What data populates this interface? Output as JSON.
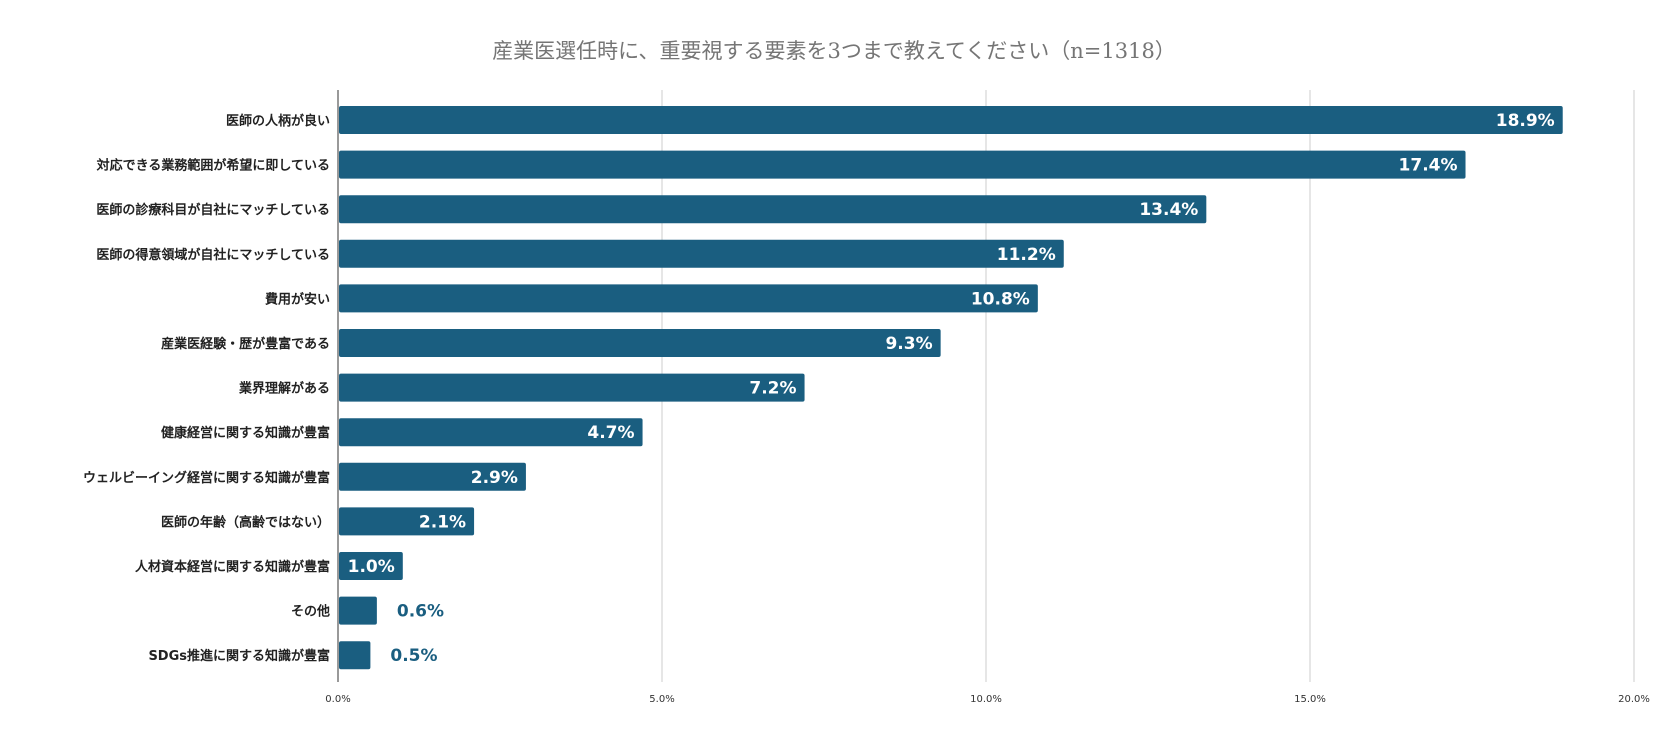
{
  "chart_data": {
    "type": "bar",
    "orientation": "horizontal",
    "title": "産業医選任時に、重要視する要素を3つまで教えてください（n=1318）",
    "categories": [
      "医師の人柄が良い",
      "対応できる業務範囲が希望に即している",
      "医師の診療科目が自社にマッチしている",
      "医師の得意領域が自社にマッチしている",
      "費用が安い",
      "産業医経験・歴が豊富である",
      "業界理解がある",
      "健康経営に関する知識が豊富",
      "ウェルビーイング経営に関する知識が豊富",
      "医師の年齢（高齢ではない）",
      "人材資本経営に関する知識が豊富",
      "その他",
      "SDGs推進に関する知識が豊富"
    ],
    "values": [
      18.9,
      17.4,
      13.4,
      11.2,
      10.8,
      9.3,
      7.2,
      4.7,
      2.9,
      2.1,
      1.0,
      0.6,
      0.5
    ],
    "value_labels": [
      "18.9%",
      "17.4%",
      "13.4%",
      "11.2%",
      "10.8%",
      "9.3%",
      "7.2%",
      "4.7%",
      "2.9%",
      "2.1%",
      "1.0%",
      "0.6%",
      "0.5%"
    ],
    "xlim": [
      0,
      20
    ],
    "xticks": [
      0,
      5,
      10,
      15,
      20
    ],
    "xtick_labels": [
      "0.0%",
      "5.0%",
      "10.0%",
      "15.0%",
      "20.0%"
    ],
    "xlabel": "",
    "ylabel": "",
    "grid": "vertical",
    "legend": "none",
    "colors": {
      "bar": "#1a5e80",
      "grid": "#cccccc",
      "axis": "#333333",
      "title": "#757575"
    }
  }
}
